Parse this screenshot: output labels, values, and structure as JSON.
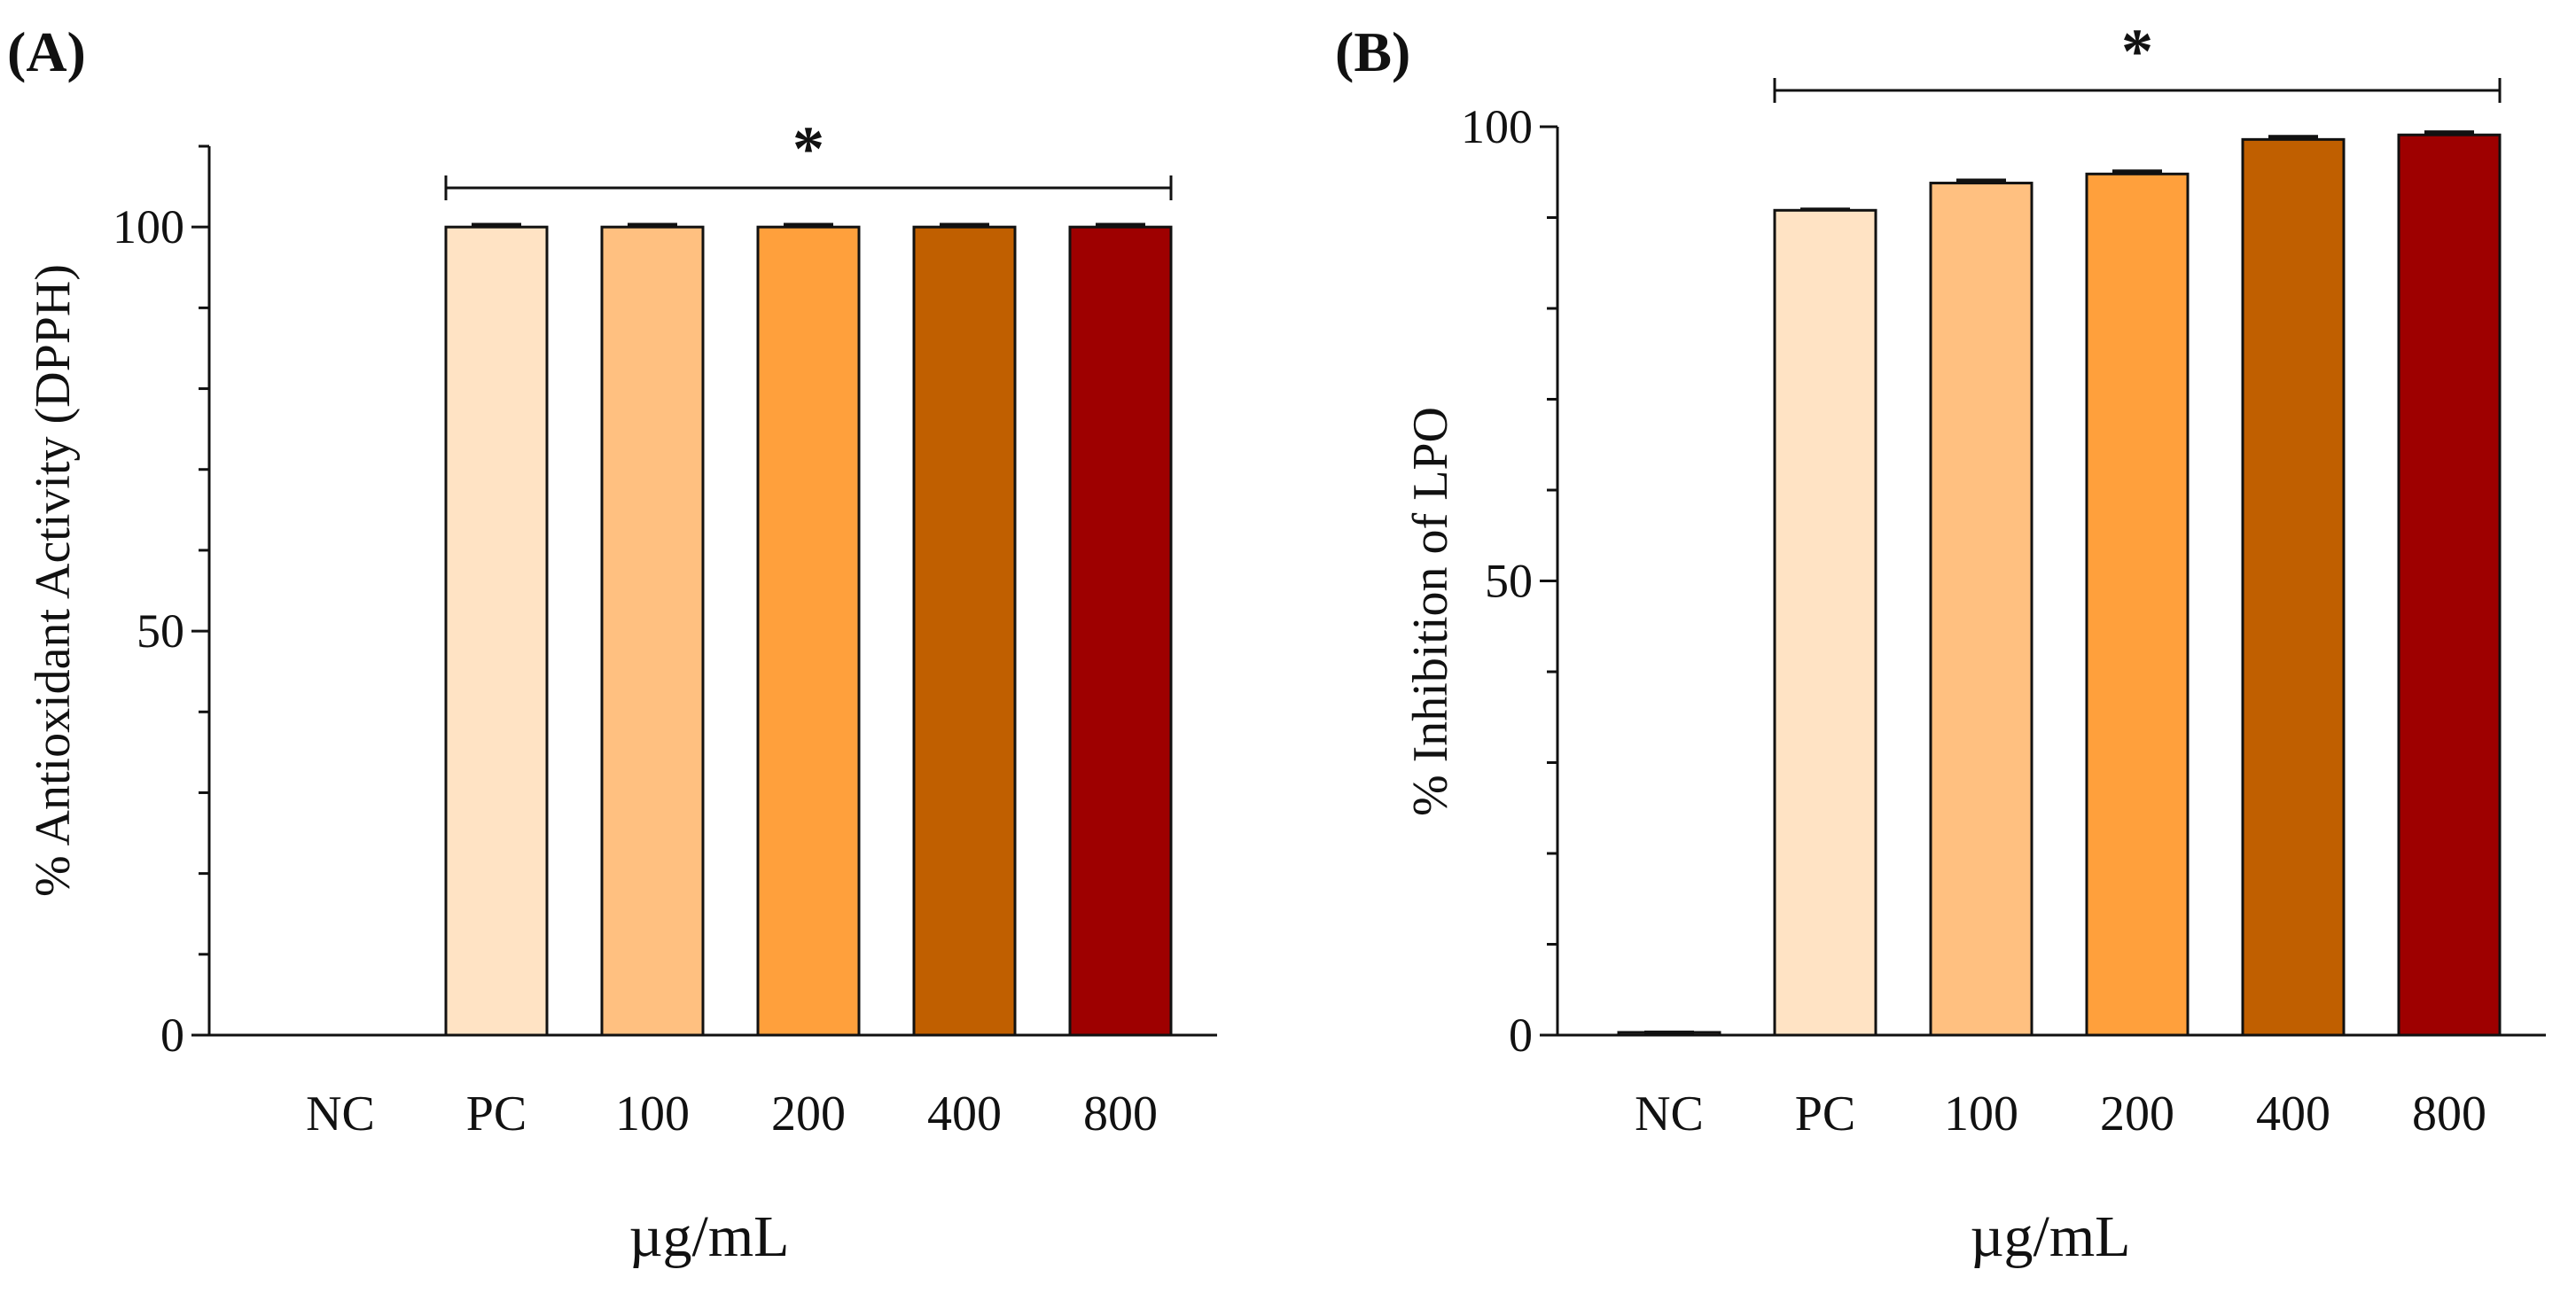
{
  "chart_data": [
    {
      "panel": "(A)",
      "type": "bar",
      "categories": [
        "NC",
        "PC",
        "100",
        "200",
        "400",
        "800"
      ],
      "values": [
        0,
        100,
        100,
        100,
        100,
        100
      ],
      "errors": [
        0,
        0.3,
        0.3,
        0.3,
        0.3,
        0.3
      ],
      "colors": [
        "#FFE3C4",
        "#FFE3C4",
        "#FFC080",
        "#FFA03C",
        "#C05F00",
        "#9E0000"
      ],
      "xlabel": "µg/mL",
      "ylabel": "% Antioxidant Activity (DPPH)",
      "ylim": [
        0,
        110
      ],
      "yticks": [
        0,
        50,
        100
      ],
      "significance": {
        "label": "*",
        "from": "PC",
        "to": "800"
      }
    },
    {
      "panel": "(B)",
      "type": "bar",
      "categories": [
        "NC",
        "PC",
        "100",
        "200",
        "400",
        "800"
      ],
      "values": [
        0.3,
        90.8,
        93.8,
        94.8,
        98.6,
        99.1
      ],
      "errors": [
        0,
        0.1,
        0.3,
        0.3,
        0.3,
        0.3
      ],
      "colors": [
        "#FFE3C4",
        "#FFE3C4",
        "#FFC080",
        "#FFA03C",
        "#C05F00",
        "#9E0000"
      ],
      "xlabel": "µg/mL",
      "ylabel": "% Inhibition of LPO",
      "ylim": [
        0,
        100
      ],
      "yticks": [
        0,
        50,
        100
      ],
      "significance": {
        "label": "*",
        "from": "PC",
        "to": "800"
      }
    }
  ]
}
